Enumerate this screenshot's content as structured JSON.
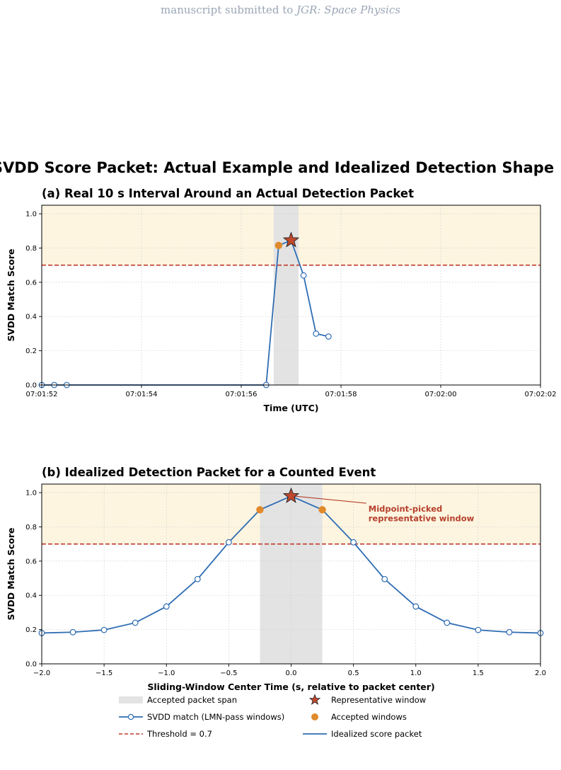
{
  "header": {
    "prefix": "manuscript submitted to",
    "journal": "JGR: Space Physics"
  },
  "suptitle": "SVDD Score Packet: Actual Example and Idealized Detection Shape",
  "colors": {
    "score_line": "#2f6db3",
    "threshold": "#c0392b",
    "accepted": "#e08a2b",
    "star": "#c0492d",
    "highlight_band": "#fdf5e0",
    "packet_span": "#e3e3e3",
    "annotation": "#b5402c"
  },
  "legend": {
    "placement": "bottom-center",
    "items": [
      {
        "label": "Accepted packet span",
        "marker": "gray-patch"
      },
      {
        "label": "Representative window",
        "marker": "star-icon"
      },
      {
        "label": "SVDD match (LMN-pass windows)",
        "marker": "line-open-circle"
      },
      {
        "label": "Accepted windows",
        "marker": "orange-dot"
      },
      {
        "label": "Threshold = 0.7",
        "marker": "dashed-red-line"
      },
      {
        "label": "Idealized score packet",
        "marker": "blue-line"
      }
    ]
  },
  "chart_data": [
    {
      "type": "line",
      "title": "(a)  Real 10 s Interval Around an Actual Detection Packet",
      "xlabel": "Time (UTC)",
      "ylabel": "SVDD Match Score",
      "xlim": [
        "07:01:52",
        "07:02:02"
      ],
      "ylim": [
        0,
        1.05
      ],
      "xticks": [
        "07:01:52",
        "07:01:54",
        "07:01:56",
        "07:01:58",
        "07:02:00",
        "07:02:02"
      ],
      "yticks": [
        "0.0",
        "0.2",
        "0.4",
        "0.6",
        "0.8",
        "1.0"
      ],
      "threshold": 0.7,
      "highlight_range": [
        0.7,
        1.05
      ],
      "accepted_span": [
        "07:01:56.65",
        "07:01:57.15"
      ],
      "grid": true,
      "series": [
        {
          "x": [
            "07:01:52.00",
            "07:01:52.25",
            "07:01:52.50",
            "07:01:56.50",
            "07:01:56.75",
            "07:01:57.00",
            "07:01:57.25",
            "07:01:57.50",
            "07:01:57.75"
          ],
          "y": [
            0.0,
            0.0,
            0.0,
            0.0,
            0.815,
            0.845,
            0.64,
            0.3,
            0.283
          ]
        }
      ],
      "accepted_windows": [
        {
          "x": "07:01:56.75",
          "y": 0.815
        }
      ],
      "representative": {
        "x": "07:01:57.00",
        "y": 0.845
      }
    },
    {
      "type": "line",
      "title": "(b)  Idealized Detection Packet for a Counted Event",
      "xlabel": "Sliding-Window Center Time (s, relative to packet center)",
      "ylabel": "SVDD Match Score",
      "xlim": [
        -2.0,
        2.0
      ],
      "ylim": [
        0,
        1.05
      ],
      "xticks": [
        "−2.0",
        "−1.5",
        "−1.0",
        "−0.5",
        "0.0",
        "0.5",
        "1.0",
        "1.5",
        "2.0"
      ],
      "xtick_values": [
        -2.0,
        -1.5,
        -1.0,
        -0.5,
        0.0,
        0.5,
        1.0,
        1.5,
        2.0
      ],
      "yticks": [
        "0.0",
        "0.2",
        "0.4",
        "0.6",
        "0.8",
        "1.0"
      ],
      "threshold": 0.7,
      "highlight_range": [
        0.7,
        1.05
      ],
      "accepted_span": [
        -0.25,
        0.25
      ],
      "grid": true,
      "series": [
        {
          "x": [
            -2.0,
            -1.75,
            -1.5,
            -1.25,
            -1.0,
            -0.75,
            -0.5,
            -0.25,
            0.0,
            0.25,
            0.5,
            0.75,
            1.0,
            1.25,
            1.5,
            1.75,
            2.0
          ],
          "y": [
            0.18,
            0.185,
            0.198,
            0.24,
            0.335,
            0.495,
            0.71,
            0.9,
            0.98,
            0.9,
            0.71,
            0.495,
            0.335,
            0.24,
            0.198,
            0.185,
            0.18
          ]
        }
      ],
      "accepted_windows": [
        {
          "x": -0.25,
          "y": 0.9
        },
        {
          "x": 0.25,
          "y": 0.9
        }
      ],
      "representative": {
        "x": 0.0,
        "y": 0.98
      },
      "annotation": {
        "lines": [
          "Midpoint-picked",
          "representative window"
        ],
        "x": 0.62,
        "y": 0.905
      }
    }
  ]
}
